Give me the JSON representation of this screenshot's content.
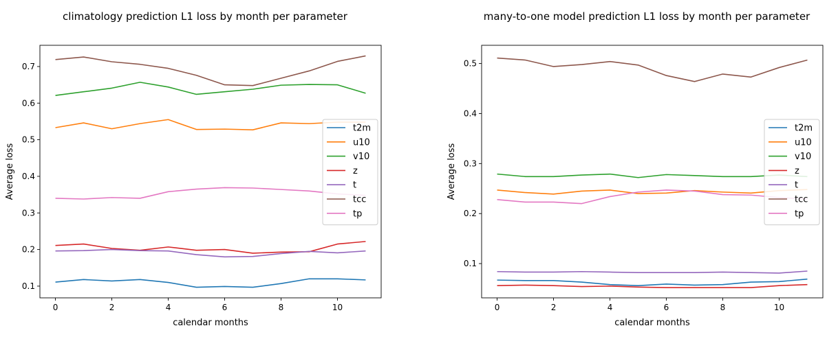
{
  "chart_data": [
    {
      "type": "line",
      "title": "climatology prediction L1 loss by month per parameter",
      "xlabel": "calendar months",
      "ylabel": "Average loss",
      "x": [
        0,
        1,
        2,
        3,
        4,
        5,
        6,
        7,
        8,
        9,
        10,
        11
      ],
      "xticks": [
        0,
        2,
        4,
        6,
        8,
        10
      ],
      "xlim": [
        -0.55,
        11.55
      ],
      "ylim": [
        0.068,
        0.758
      ],
      "yticks": [
        0.1,
        0.2,
        0.3,
        0.4,
        0.5,
        0.6,
        0.7
      ],
      "legend_position": "right",
      "series": [
        {
          "name": "t2m",
          "color": "#1f77b4",
          "values": [
            0.111,
            0.118,
            0.114,
            0.118,
            0.11,
            0.097,
            0.099,
            0.097,
            0.107,
            0.12,
            0.12,
            0.117
          ]
        },
        {
          "name": "u10",
          "color": "#ff7f0e",
          "values": [
            0.533,
            0.546,
            0.53,
            0.544,
            0.555,
            0.528,
            0.529,
            0.527,
            0.546,
            0.544,
            0.548,
            0.548
          ]
        },
        {
          "name": "v10",
          "color": "#2ca02c",
          "values": [
            0.621,
            0.631,
            0.641,
            0.657,
            0.644,
            0.624,
            0.631,
            0.638,
            0.649,
            0.651,
            0.65,
            0.627
          ]
        },
        {
          "name": "z",
          "color": "#d62728",
          "values": [
            0.211,
            0.215,
            0.203,
            0.198,
            0.207,
            0.198,
            0.2,
            0.19,
            0.193,
            0.194,
            0.215,
            0.222
          ]
        },
        {
          "name": "t",
          "color": "#9467bd",
          "values": [
            0.196,
            0.197,
            0.2,
            0.197,
            0.196,
            0.186,
            0.18,
            0.181,
            0.189,
            0.195,
            0.191,
            0.196
          ]
        },
        {
          "name": "tcc",
          "color": "#8c564b",
          "values": [
            0.719,
            0.726,
            0.713,
            0.706,
            0.695,
            0.676,
            0.65,
            0.648,
            0.668,
            0.688,
            0.714,
            0.729
          ]
        },
        {
          "name": "tp",
          "color": "#e377c2",
          "values": [
            0.34,
            0.338,
            0.342,
            0.34,
            0.358,
            0.365,
            0.369,
            0.368,
            0.364,
            0.36,
            0.352,
            0.348
          ]
        }
      ]
    },
    {
      "type": "line",
      "title": "many-to-one model prediction L1 loss by month per parameter",
      "xlabel": "calendar months",
      "ylabel": "Average loss",
      "x": [
        0,
        1,
        2,
        3,
        4,
        5,
        6,
        7,
        8,
        9,
        10,
        11
      ],
      "xticks": [
        0,
        2,
        4,
        6,
        8,
        10
      ],
      "xlim": [
        -0.55,
        11.55
      ],
      "ylim": [
        0.0315,
        0.5365
      ],
      "yticks": [
        0.1,
        0.2,
        0.3,
        0.4,
        0.5
      ],
      "legend_position": "right",
      "series": [
        {
          "name": "t2m",
          "color": "#1f77b4",
          "values": [
            0.067,
            0.066,
            0.066,
            0.063,
            0.058,
            0.056,
            0.059,
            0.057,
            0.058,
            0.063,
            0.064,
            0.069
          ]
        },
        {
          "name": "u10",
          "color": "#ff7f0e",
          "values": [
            0.247,
            0.242,
            0.239,
            0.245,
            0.247,
            0.24,
            0.241,
            0.246,
            0.243,
            0.241,
            0.246,
            0.248
          ]
        },
        {
          "name": "v10",
          "color": "#2ca02c",
          "values": [
            0.279,
            0.274,
            0.274,
            0.277,
            0.279,
            0.272,
            0.278,
            0.276,
            0.274,
            0.274,
            0.277,
            0.274
          ]
        },
        {
          "name": "z",
          "color": "#d62728",
          "values": [
            0.056,
            0.057,
            0.056,
            0.054,
            0.055,
            0.053,
            0.052,
            0.052,
            0.052,
            0.052,
            0.056,
            0.058
          ]
        },
        {
          "name": "t",
          "color": "#9467bd",
          "values": [
            0.084,
            0.083,
            0.083,
            0.084,
            0.083,
            0.082,
            0.082,
            0.082,
            0.083,
            0.082,
            0.081,
            0.085
          ]
        },
        {
          "name": "tcc",
          "color": "#8c564b",
          "values": [
            0.511,
            0.507,
            0.494,
            0.498,
            0.504,
            0.497,
            0.476,
            0.464,
            0.479,
            0.473,
            0.492,
            0.507
          ]
        },
        {
          "name": "tp",
          "color": "#e377c2",
          "values": [
            0.228,
            0.223,
            0.223,
            0.22,
            0.234,
            0.243,
            0.247,
            0.245,
            0.238,
            0.237,
            0.232,
            0.229
          ]
        }
      ]
    }
  ]
}
